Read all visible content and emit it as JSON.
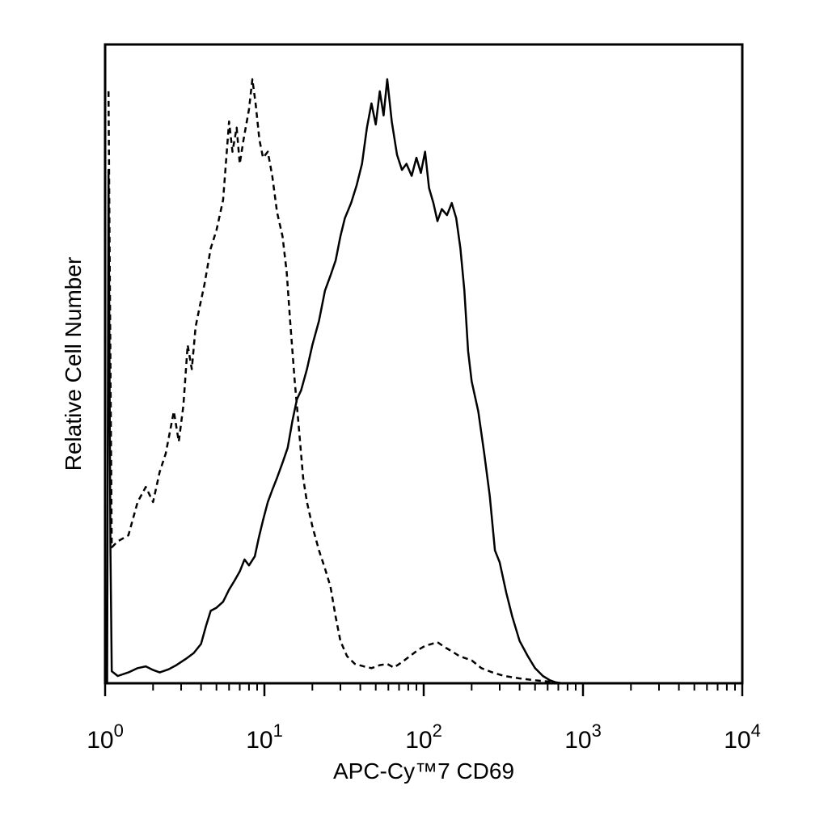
{
  "chart_data": {
    "type": "line",
    "title": "",
    "xlabel": "APC-Cy™7 CD69",
    "ylabel": "Relative Cell Number",
    "x_scale": "log",
    "xlim": [
      1,
      10000
    ],
    "ylim": [
      0,
      100
    ],
    "grid": false,
    "y_ticks_shown": false,
    "x_ticks": [
      {
        "base": "10",
        "exp": "0",
        "value": 1
      },
      {
        "base": "10",
        "exp": "1",
        "value": 10
      },
      {
        "base": "10",
        "exp": "2",
        "value": 100
      },
      {
        "base": "10",
        "exp": "3",
        "value": 1000
      },
      {
        "base": "10",
        "exp": "4",
        "value": 10000
      }
    ],
    "series": [
      {
        "style": "dashed",
        "points": [
          [
            1.05,
            98
          ],
          [
            1.1,
            22.5
          ],
          [
            1.2,
            23.5
          ],
          [
            1.4,
            24.5
          ],
          [
            1.6,
            30
          ],
          [
            1.8,
            32.5
          ],
          [
            2.0,
            30
          ],
          [
            2.2,
            35
          ],
          [
            2.4,
            38
          ],
          [
            2.7,
            45
          ],
          [
            2.9,
            40
          ],
          [
            3.1,
            46
          ],
          [
            3.3,
            56
          ],
          [
            3.5,
            52
          ],
          [
            3.7,
            59
          ],
          [
            3.9,
            62
          ],
          [
            4.2,
            66
          ],
          [
            4.6,
            72
          ],
          [
            5.0,
            75
          ],
          [
            5.5,
            80
          ],
          [
            6.0,
            93
          ],
          [
            6.3,
            88
          ],
          [
            6.7,
            92
          ],
          [
            7.0,
            86
          ],
          [
            7.4,
            90
          ],
          [
            8.0,
            95
          ],
          [
            8.4,
            100
          ],
          [
            8.8,
            96
          ],
          [
            9.3,
            90
          ],
          [
            9.8,
            87
          ],
          [
            10.5,
            88
          ],
          [
            11.2,
            84
          ],
          [
            12.0,
            78
          ],
          [
            13.0,
            74
          ],
          [
            13.8,
            68
          ],
          [
            14.5,
            60
          ],
          [
            15.5,
            50
          ],
          [
            16.5,
            42
          ],
          [
            17.5,
            34
          ],
          [
            18.5,
            30
          ],
          [
            20,
            26
          ],
          [
            22,
            22
          ],
          [
            24,
            19
          ],
          [
            26,
            16
          ],
          [
            28,
            11
          ],
          [
            30,
            7
          ],
          [
            33,
            4.5
          ],
          [
            37,
            3.2
          ],
          [
            42,
            2.8
          ],
          [
            47,
            2.5
          ],
          [
            53,
            3.0
          ],
          [
            59,
            3.2
          ],
          [
            65,
            2.6
          ],
          [
            73,
            3.5
          ],
          [
            82,
            4.5
          ],
          [
            92,
            5.5
          ],
          [
            102,
            6.2
          ],
          [
            112,
            6.5
          ],
          [
            122,
            6.8
          ],
          [
            135,
            6.0
          ],
          [
            150,
            5.3
          ],
          [
            165,
            4.6
          ],
          [
            180,
            4.2
          ],
          [
            200,
            3.8
          ],
          [
            230,
            2.5
          ],
          [
            270,
            1.8
          ],
          [
            320,
            1.2
          ],
          [
            400,
            0.8
          ],
          [
            500,
            0.5
          ],
          [
            600,
            0.3
          ],
          [
            700,
            0.1
          ],
          [
            800,
            0
          ]
        ]
      },
      {
        "style": "solid",
        "points": [
          [
            1.03,
            0
          ],
          [
            1.05,
            85
          ],
          [
            1.08,
            22
          ],
          [
            1.1,
            2
          ],
          [
            1.2,
            1.2
          ],
          [
            1.4,
            1.8
          ],
          [
            1.6,
            2.5
          ],
          [
            1.8,
            2.8
          ],
          [
            2.0,
            2.2
          ],
          [
            2.2,
            1.8
          ],
          [
            2.5,
            2.3
          ],
          [
            2.8,
            3.0
          ],
          [
            3.2,
            4.0
          ],
          [
            3.6,
            5.0
          ],
          [
            4.0,
            6.5
          ],
          [
            4.3,
            9.5
          ],
          [
            4.6,
            12.0
          ],
          [
            5.0,
            12.5
          ],
          [
            5.5,
            13.5
          ],
          [
            6.0,
            15.5
          ],
          [
            6.5,
            17.0
          ],
          [
            7.0,
            18.5
          ],
          [
            7.5,
            20.5
          ],
          [
            8.0,
            19.5
          ],
          [
            8.7,
            21.0
          ],
          [
            9.2,
            24.0
          ],
          [
            9.8,
            27.0
          ],
          [
            10.5,
            30.0
          ],
          [
            11.2,
            32.0
          ],
          [
            12.0,
            34.0
          ],
          [
            13.0,
            36.5
          ],
          [
            14.0,
            39.0
          ],
          [
            15.0,
            43.5
          ],
          [
            16.0,
            47.0
          ],
          [
            17.0,
            48.5
          ],
          [
            18.5,
            52.0
          ],
          [
            20,
            56.0
          ],
          [
            22,
            60.0
          ],
          [
            24,
            65.0
          ],
          [
            26,
            67.5
          ],
          [
            28,
            70.0
          ],
          [
            30,
            74.0
          ],
          [
            32,
            77.0
          ],
          [
            35,
            79.5
          ],
          [
            38,
            82.5
          ],
          [
            41,
            86.0
          ],
          [
            44,
            92.0
          ],
          [
            47,
            96.0
          ],
          [
            50,
            92.5
          ],
          [
            53,
            98.0
          ],
          [
            56,
            94.0
          ],
          [
            59,
            100.0
          ],
          [
            63,
            93.0
          ],
          [
            68,
            87.5
          ],
          [
            73,
            85.0
          ],
          [
            78,
            86.0
          ],
          [
            84,
            84.0
          ],
          [
            90,
            87.0
          ],
          [
            96,
            84.5
          ],
          [
            102,
            88.0
          ],
          [
            108,
            82.0
          ],
          [
            115,
            79.5
          ],
          [
            122,
            76.5
          ],
          [
            130,
            78.5
          ],
          [
            140,
            77.5
          ],
          [
            150,
            79.5
          ],
          [
            160,
            77.0
          ],
          [
            170,
            72.0
          ],
          [
            180,
            65.0
          ],
          [
            190,
            55.0
          ],
          [
            200,
            50.0
          ],
          [
            220,
            45.0
          ],
          [
            240,
            38.0
          ],
          [
            260,
            31.0
          ],
          [
            280,
            22.0
          ],
          [
            300,
            20.0
          ],
          [
            330,
            15.0
          ],
          [
            360,
            11.0
          ],
          [
            400,
            7.0
          ],
          [
            450,
            4.5
          ],
          [
            500,
            2.5
          ],
          [
            560,
            1.2
          ],
          [
            620,
            0.5
          ],
          [
            700,
            0
          ]
        ]
      }
    ]
  }
}
